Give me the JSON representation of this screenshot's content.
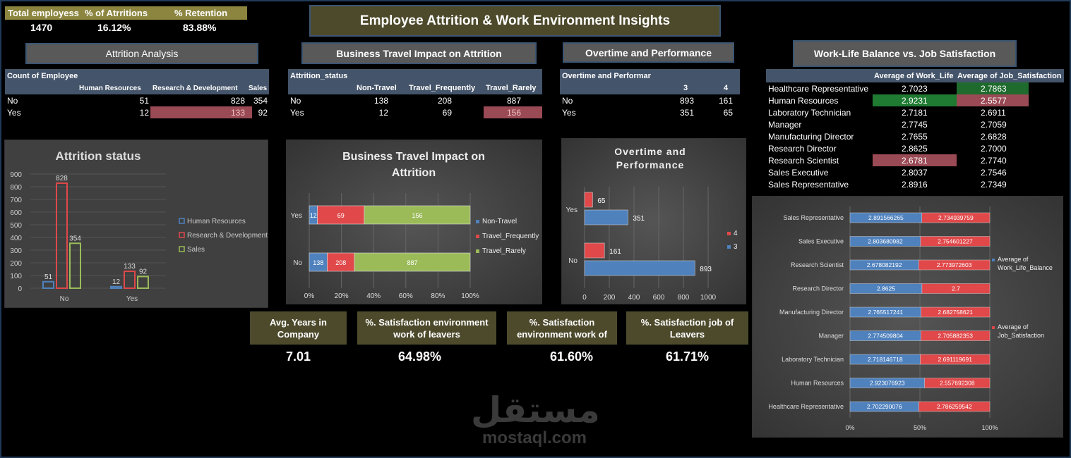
{
  "top_kpis": {
    "labels": [
      "Total employess",
      "% of Atrritions",
      "% Retention"
    ],
    "values": [
      "1470",
      "16.12%",
      "83.88%"
    ]
  },
  "title": "Employee Attrition & Work Environment Insights",
  "section_headers": {
    "attrition": "Attrition Analysis",
    "travel": "Business Travel Impact on Attrition",
    "overtime": "Overtime and Performance",
    "worklife": "Work-Life Balance vs. Job Satisfaction"
  },
  "attrition_table": {
    "corner": "Count of Employee",
    "columns": [
      "Human Resources",
      "Research & Development",
      "Sales"
    ],
    "rows": [
      {
        "label": "No",
        "values": [
          "51",
          "828",
          "354"
        ]
      },
      {
        "label": "Yes",
        "values": [
          "12",
          "133",
          "92"
        ]
      }
    ]
  },
  "travel_table": {
    "corner": "Attrition_status",
    "columns": [
      "Non-Travel",
      "Travel_Frequently",
      "Travel_Rarely"
    ],
    "rows": [
      {
        "label": "No",
        "values": [
          "138",
          "208",
          "887"
        ]
      },
      {
        "label": "Yes",
        "values": [
          "12",
          "69",
          "156"
        ]
      }
    ]
  },
  "overtime_table": {
    "corner": "Overtime and Performar",
    "columns": [
      "3",
      "4"
    ],
    "rows": [
      {
        "label": "No",
        "values": [
          "893",
          "161"
        ]
      },
      {
        "label": "Yes",
        "values": [
          "351",
          "65"
        ]
      }
    ]
  },
  "worklife_table": {
    "columns": [
      "Average of Work_Life",
      "Average of Job_Satisfaction"
    ],
    "rows": [
      {
        "label": "Healthcare Representative",
        "values": [
          "2.7023",
          "2.7863"
        ]
      },
      {
        "label": "Human Resources",
        "values": [
          "2.9231",
          "2.5577"
        ]
      },
      {
        "label": "Laboratory Technician",
        "values": [
          "2.7181",
          "2.6911"
        ]
      },
      {
        "label": "Manager",
        "values": [
          "2.7745",
          "2.7059"
        ]
      },
      {
        "label": "Manufacturing Director",
        "values": [
          "2.7655",
          "2.6828"
        ]
      },
      {
        "label": "Research Director",
        "values": [
          "2.8625",
          "2.7000"
        ]
      },
      {
        "label": "Research Scientist",
        "values": [
          "2.6781",
          "2.7740"
        ]
      },
      {
        "label": "Sales Executive",
        "values": [
          "2.8037",
          "2.7546"
        ]
      },
      {
        "label": "Sales Representative",
        "values": [
          "2.8916",
          "2.7349"
        ]
      }
    ]
  },
  "cards": [
    {
      "label": "Avg. Years in Company",
      "value": "7.01"
    },
    {
      "label": "%. Satisfaction environment work of leavers",
      "value": "64.98%"
    },
    {
      "label": "%. Satisfaction environment work of",
      "value": "61.60%"
    },
    {
      "label": "%. Satisfaction job of Leavers",
      "value": "61.71%"
    }
  ],
  "watermark": {
    "arabic": "مستقل",
    "latin": "mostaql.com"
  },
  "colors": {
    "blue": "#4f81bd",
    "red": "#e0484a",
    "green": "#9bbb59",
    "olive": "#4d4a2c",
    "header": "#44546a"
  },
  "chart_data": [
    {
      "type": "bar",
      "title": "Attrition status",
      "categories": [
        "No",
        "Yes"
      ],
      "series": [
        {
          "name": "Human Resources",
          "values": [
            51,
            12
          ]
        },
        {
          "name": "Research & Development",
          "values": [
            828,
            133
          ]
        },
        {
          "name": "Sales",
          "values": [
            354,
            92
          ]
        }
      ],
      "ylim": [
        0,
        900
      ],
      "yticks": [
        "0",
        "100",
        "200",
        "300",
        "400",
        "500",
        "600",
        "700",
        "800",
        "900"
      ],
      "legend": "right"
    },
    {
      "type": "bar",
      "orientation": "horizontal-stacked-100",
      "title": "Business Travel Impact on Attrition",
      "categories": [
        "No",
        "Yes"
      ],
      "series": [
        {
          "name": "Non-Travel",
          "values": [
            138,
            12
          ]
        },
        {
          "name": "Travel_Frequently",
          "values": [
            208,
            69
          ]
        },
        {
          "name": "Travel_Rarely",
          "values": [
            887,
            156
          ]
        }
      ],
      "xticks": [
        "0%",
        "20%",
        "40%",
        "60%",
        "80%",
        "100%"
      ],
      "legend": "right"
    },
    {
      "type": "bar",
      "orientation": "horizontal",
      "title": "Overtime and Performance",
      "categories": [
        "No",
        "Yes"
      ],
      "series": [
        {
          "name": "3",
          "values": [
            893,
            351
          ]
        },
        {
          "name": "4",
          "values": [
            161,
            65
          ]
        }
      ],
      "xlim": [
        0,
        1000
      ],
      "xticks": [
        "0",
        "200",
        "400",
        "600",
        "800",
        "1000"
      ],
      "legend": "right"
    },
    {
      "type": "bar",
      "orientation": "horizontal-stacked-100",
      "categories": [
        "Healthcare Representative",
        "Human Resources",
        "Laboratory Technician",
        "Manager",
        "Manufacturing Director",
        "Research Director",
        "Research Scientist",
        "Sales Executive",
        "Sales Representative"
      ],
      "series": [
        {
          "name": "Average of Work_Life_Balance",
          "values": [
            2.702290076,
            2.923076923,
            2.718146718,
            2.774509804,
            2.765517241,
            2.8625,
            2.678082192,
            2.803680982,
            2.891566265
          ],
          "labels": [
            "2.702290076",
            "2.923076923",
            "2.718146718",
            "2.774509804",
            "2.765517241",
            "2.8625",
            "2.678082192",
            "2.803680982",
            "2.891566265"
          ]
        },
        {
          "name": "Average of Job_Satisfaction",
          "values": [
            2.786259542,
            2.557692308,
            2.691119691,
            2.705882353,
            2.682758621,
            2.7,
            2.773972603,
            2.754601227,
            2.734939759
          ],
          "labels": [
            "2.786259542",
            "2.557692308",
            "2.691119691",
            "2.705882353",
            "2.682758621",
            "2.7",
            "2.773972603",
            "2.754601227",
            "2.734939759"
          ]
        }
      ],
      "xticks": [
        "0%",
        "50%",
        "100%"
      ],
      "legend": "right"
    }
  ]
}
